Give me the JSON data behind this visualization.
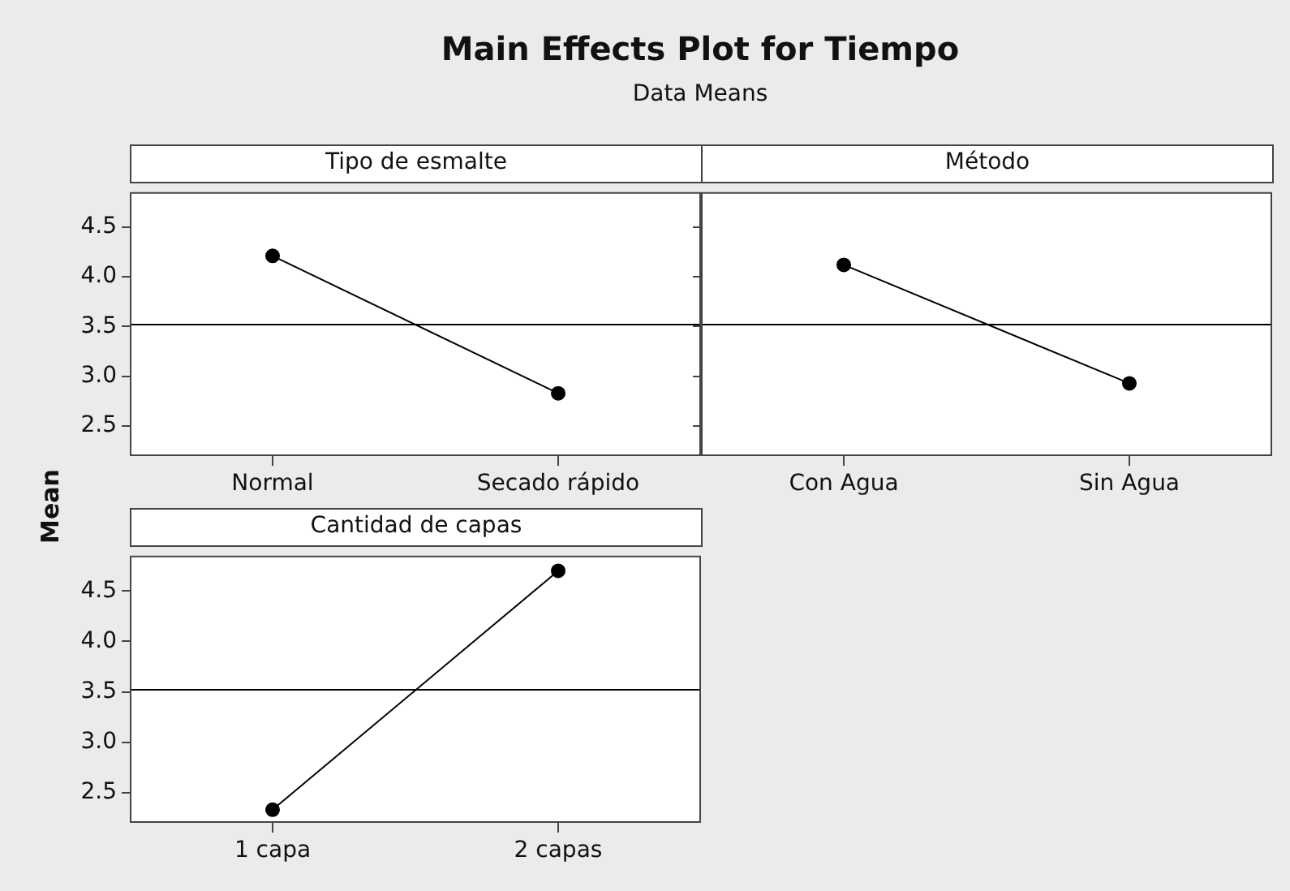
{
  "chart_data": [
    {
      "type": "line",
      "title": "Main Effects Plot for Tiempo",
      "subtitle": "Data Means",
      "ylabel": "Mean",
      "xlabel": "Tipo de esmalte",
      "categories": [
        "Normal",
        "Secado rápido"
      ],
      "values": [
        4.21,
        2.83
      ],
      "color": "#000000",
      "marker": "circle",
      "ylim": [
        2.2,
        4.85
      ],
      "yticks": [
        {
          "value": 2.5,
          "label": "2.5"
        },
        {
          "value": 3,
          "label": "3.0"
        },
        {
          "value": 3.5,
          "label": "3.5"
        },
        {
          "value": 4,
          "label": "4.0"
        },
        {
          "value": 4.5,
          "label": "4.5"
        }
      ],
      "ref_lines": [
        {
          "axis": "y",
          "value": 3.52,
          "color": "#000000"
        }
      ]
    },
    {
      "type": "line",
      "xlabel": "Método",
      "categories": [
        "Con Agua",
        "Sin Agua"
      ],
      "values": [
        4.12,
        2.93
      ],
      "color": "#000000",
      "marker": "circle",
      "ylim": [
        2.2,
        4.85
      ],
      "yticks": [
        {
          "value": 2.5,
          "label": null
        },
        {
          "value": 3,
          "label": null
        },
        {
          "value": 3.5,
          "label": null
        },
        {
          "value": 4,
          "label": null
        },
        {
          "value": 4.5,
          "label": null
        }
      ],
      "tick_labels": "x",
      "ref_lines": [
        {
          "axis": "y",
          "value": 3.52,
          "color": "#000000"
        }
      ]
    },
    {
      "type": "line",
      "xlabel": "Cantidad de capas",
      "categories": [
        "1 capa",
        "2 capas"
      ],
      "values": [
        2.33,
        4.7
      ],
      "color": "#000000",
      "marker": "circle",
      "ylim": [
        2.2,
        4.85
      ],
      "yticks": [
        {
          "value": 2.5,
          "label": "2.5"
        },
        {
          "value": 3,
          "label": "3.0"
        },
        {
          "value": 3.5,
          "label": "3.5"
        },
        {
          "value": 4,
          "label": "4.0"
        },
        {
          "value": 4.5,
          "label": "4.5"
        }
      ],
      "ref_lines": [
        {
          "axis": "y",
          "value": 3.52,
          "color": "#000000"
        }
      ]
    }
  ]
}
